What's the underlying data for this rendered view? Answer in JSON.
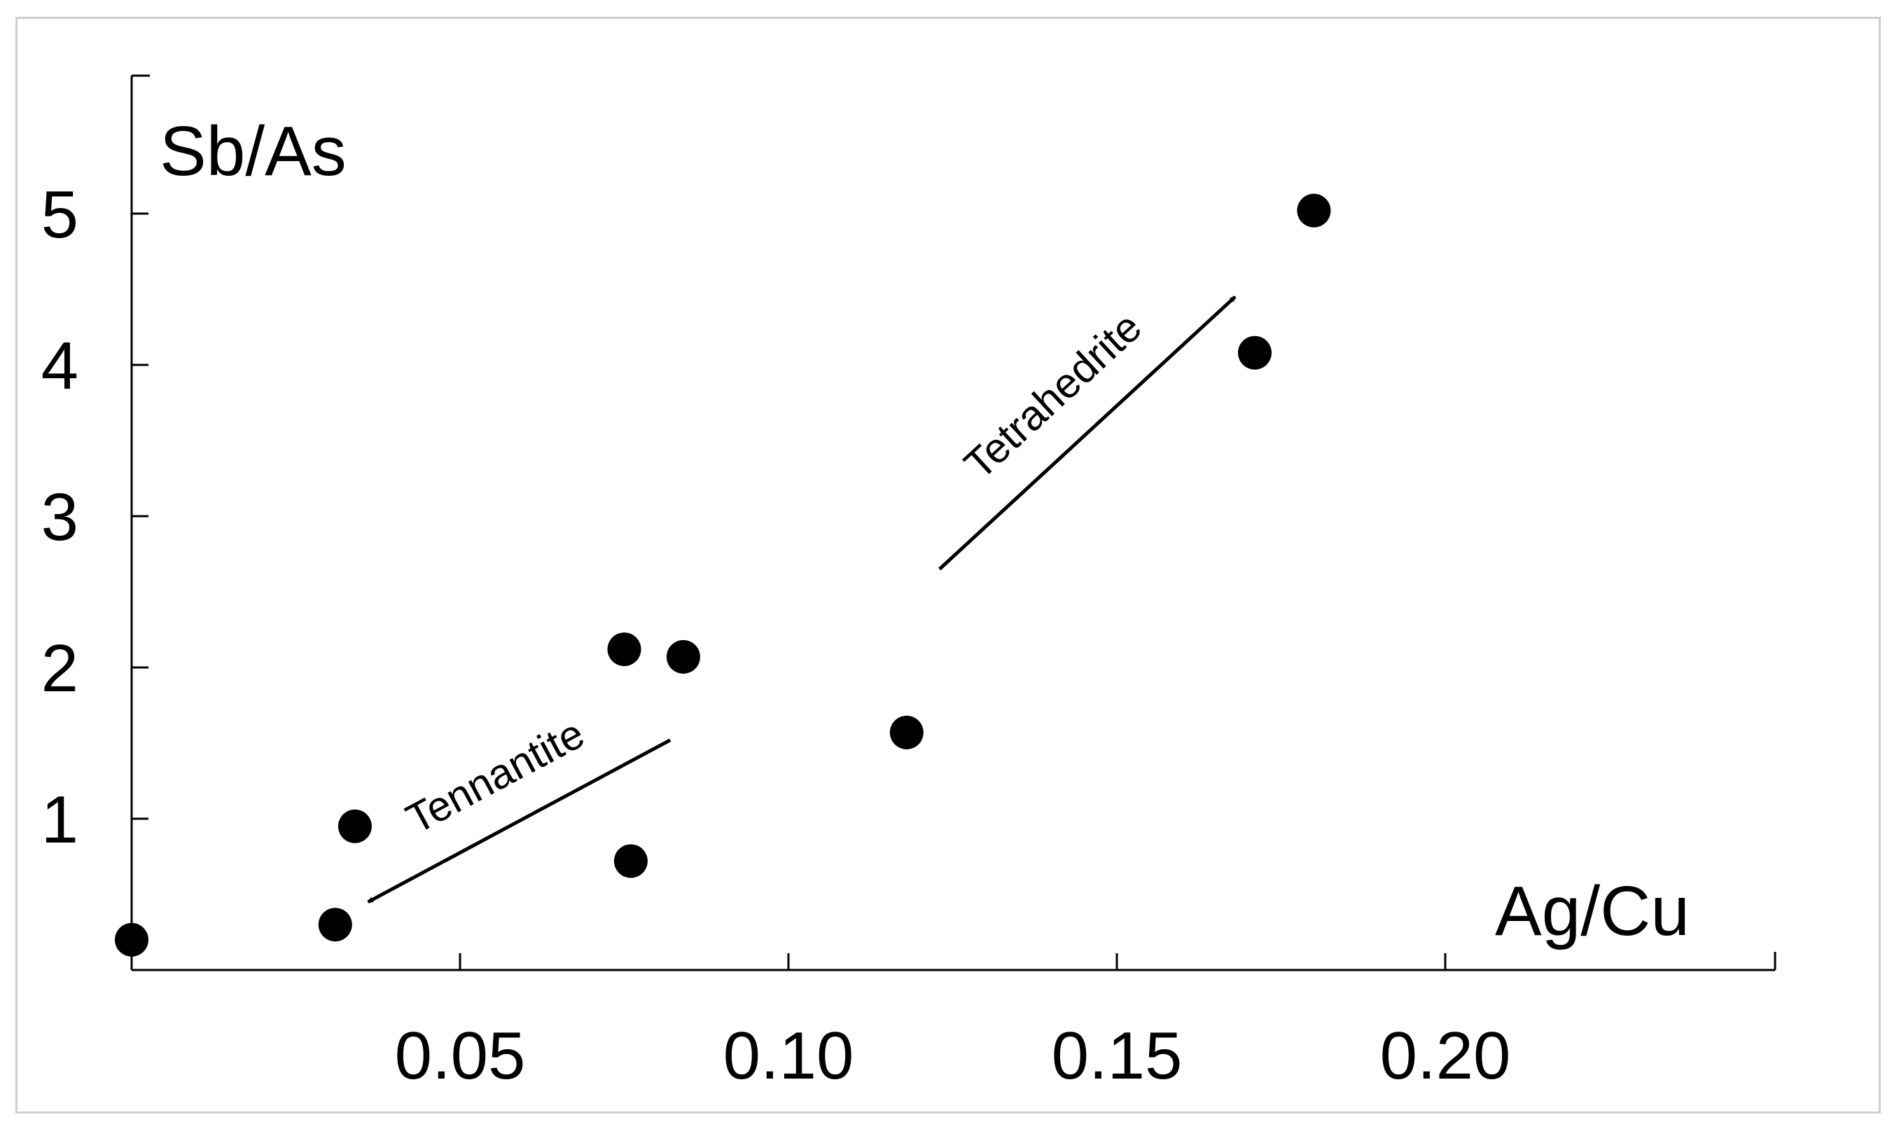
{
  "chart_data": {
    "type": "scatter",
    "title": "",
    "xlabel": "Ag/Cu",
    "ylabel": "Sb/As",
    "xlim": [
      0,
      0.25
    ],
    "ylim": [
      0,
      5.5
    ],
    "x_ticks": [
      0.05,
      0.1,
      0.15,
      0.2
    ],
    "x_tick_labels": [
      "0.05",
      "0.10",
      "0.15",
      "0.20"
    ],
    "y_ticks": [
      1,
      2,
      3,
      4,
      5
    ],
    "y_tick_labels": [
      "1",
      "2",
      "3",
      "4",
      "5"
    ],
    "grid": false,
    "legend": "none",
    "series": [
      {
        "points": [
          {
            "x": 0.0,
            "y": 0.2
          },
          {
            "x": 0.031,
            "y": 0.3
          },
          {
            "x": 0.034,
            "y": 0.95
          },
          {
            "x": 0.075,
            "y": 2.12
          },
          {
            "x": 0.076,
            "y": 0.72
          },
          {
            "x": 0.084,
            "y": 2.07
          },
          {
            "x": 0.118,
            "y": 1.57
          },
          {
            "x": 0.171,
            "y": 4.08
          },
          {
            "x": 0.18,
            "y": 5.02
          }
        ],
        "color": "#000000"
      }
    ],
    "annotations": [
      {
        "text": "Tetrahedrite",
        "from": {
          "x": 0.123,
          "y": 2.65
        },
        "to": {
          "x": 0.168,
          "y": 4.45
        }
      },
      {
        "text": "Tennantite",
        "from": {
          "x": 0.082,
          "y": 1.52
        },
        "to": {
          "x": 0.036,
          "y": 0.45
        }
      }
    ]
  }
}
